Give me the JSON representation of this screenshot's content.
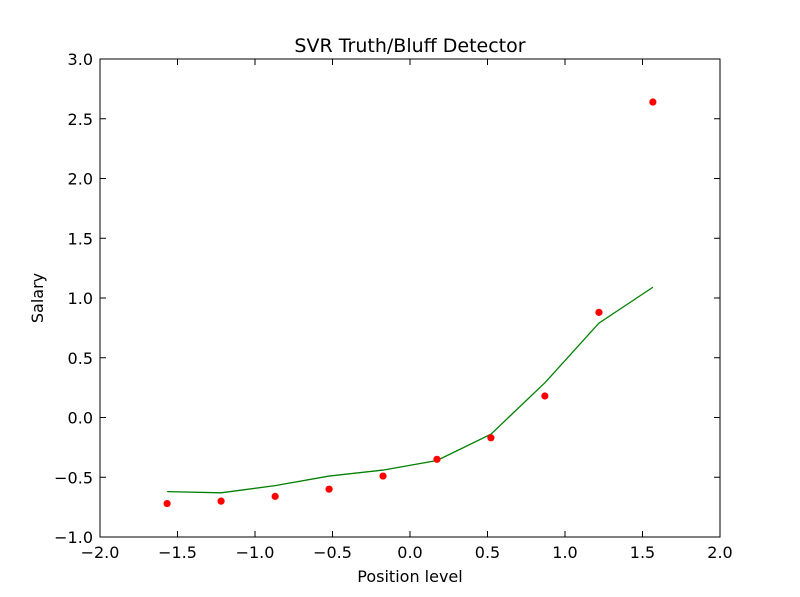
{
  "chart_data": {
    "type": "scatter",
    "title": "SVR Truth/Bluff Detector",
    "xlabel": "Position level",
    "ylabel": "Salary",
    "xlim": [
      -2.0,
      2.0
    ],
    "ylim": [
      -1.0,
      3.0
    ],
    "x_ticks": [
      -2.0,
      -1.5,
      -1.0,
      -0.5,
      0.0,
      0.5,
      1.0,
      1.5,
      2.0
    ],
    "y_ticks": [
      -1.0,
      -0.5,
      0.0,
      0.5,
      1.0,
      1.5,
      2.0,
      2.5,
      3.0
    ],
    "x_tick_labels": [
      "−2.0",
      "−1.5",
      "−1.0",
      "−0.5",
      "0.0",
      "0.5",
      "1.0",
      "1.5",
      "2.0"
    ],
    "y_tick_labels": [
      "−1.0",
      "−0.5",
      "0.0",
      "0.5",
      "1.0",
      "1.5",
      "2.0",
      "2.5",
      "3.0"
    ],
    "grid": false,
    "series": [
      {
        "kind": "scatter",
        "color": "#ff0000",
        "x": [
          -1.567,
          -1.219,
          -0.87,
          -0.522,
          -0.174,
          0.174,
          0.522,
          0.87,
          1.219,
          1.567
        ],
        "y": [
          -0.72,
          -0.7,
          -0.66,
          -0.6,
          -0.49,
          -0.35,
          -0.17,
          0.18,
          0.88,
          2.64
        ]
      },
      {
        "kind": "line",
        "color": "#008000",
        "x": [
          -1.567,
          -1.219,
          -0.87,
          -0.522,
          -0.174,
          0.174,
          0.522,
          0.87,
          1.219,
          1.567
        ],
        "y": [
          -0.62,
          -0.63,
          -0.57,
          -0.49,
          -0.44,
          -0.36,
          -0.14,
          0.29,
          0.79,
          1.09
        ]
      }
    ]
  }
}
